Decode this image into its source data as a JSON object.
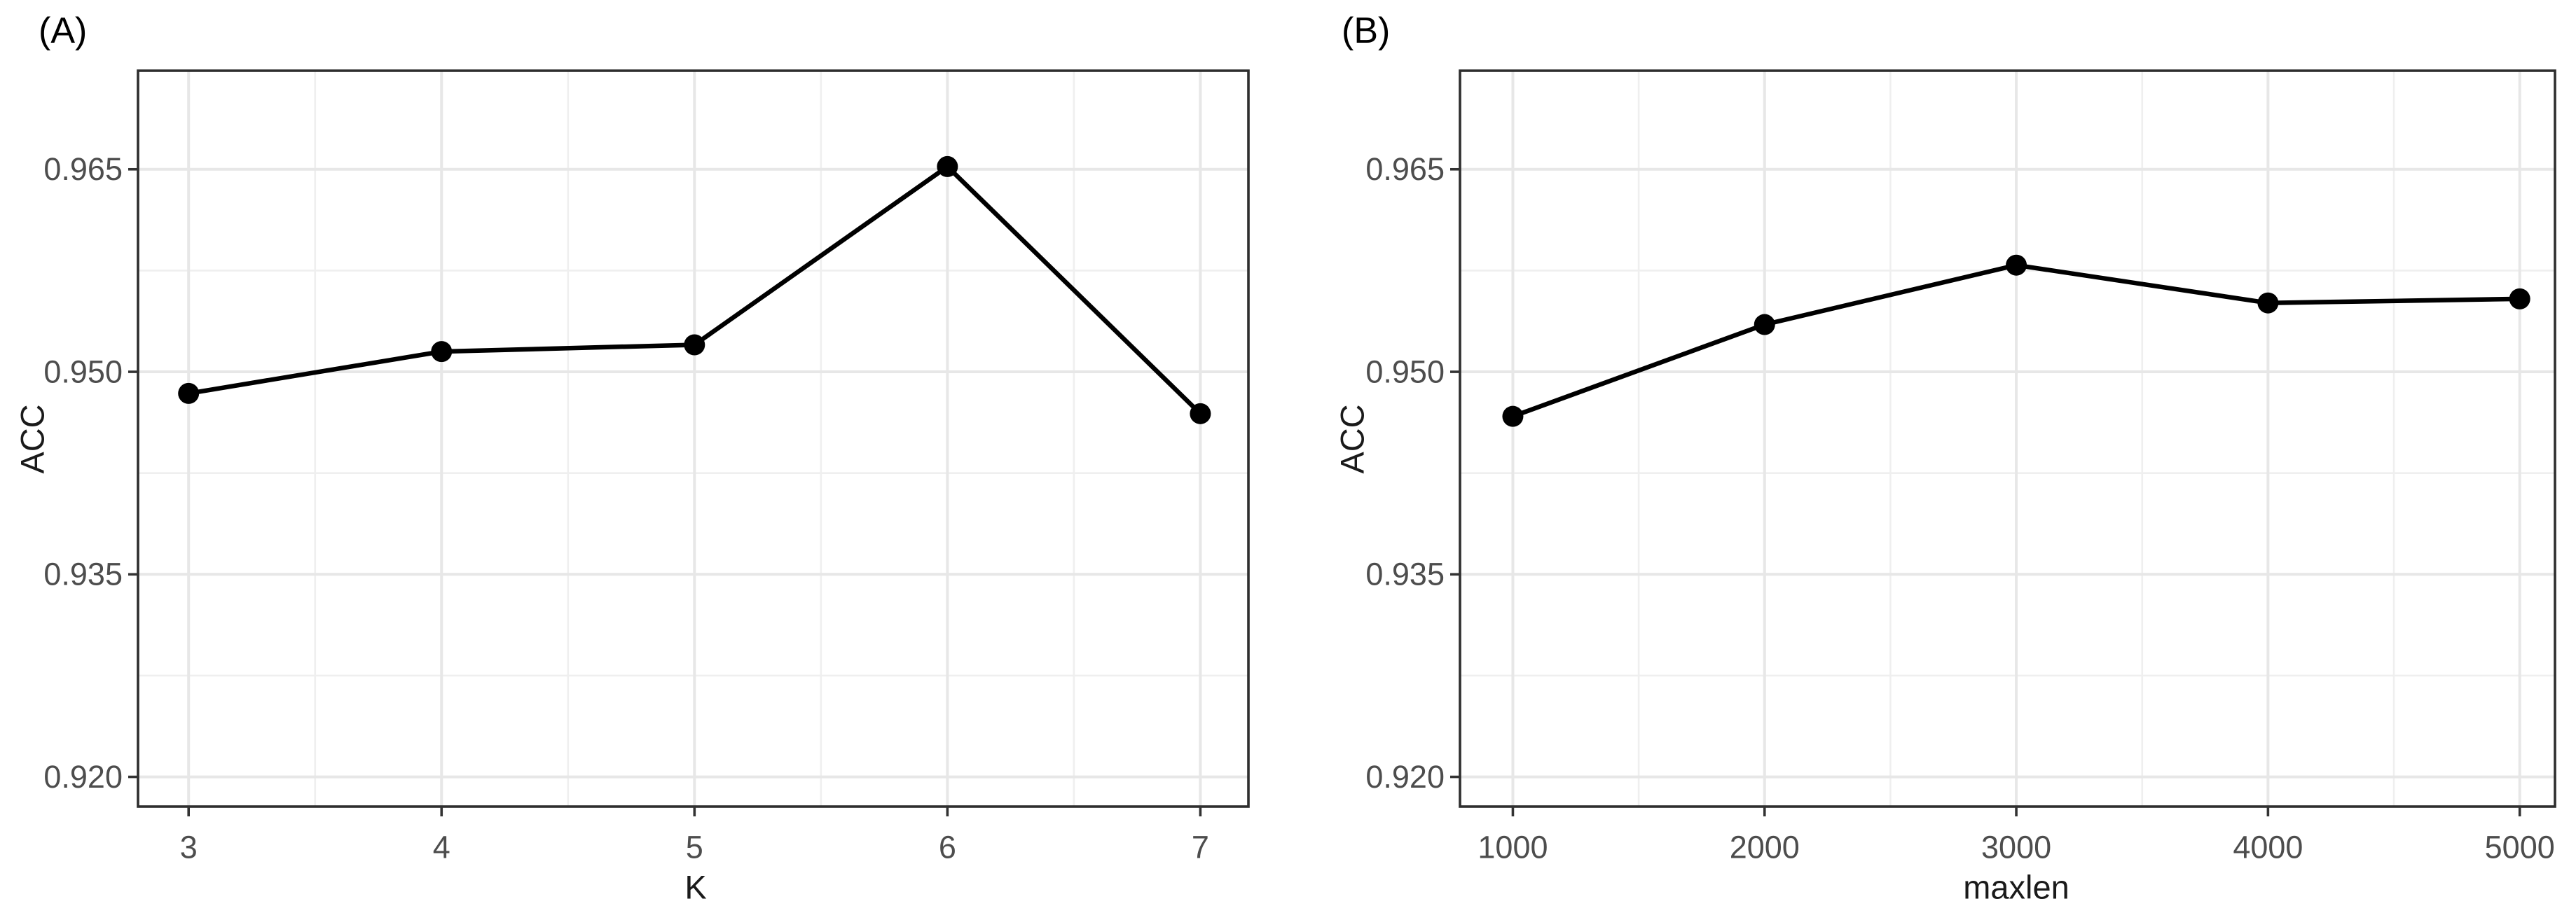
{
  "figure": {
    "background": "#ffffff"
  },
  "style": {
    "border_color": "#2e2e2e",
    "grid_major_color": "#e7e7e7",
    "grid_minor_color": "#efefef",
    "tick_color": "#333333",
    "tick_label_color": "#4d4d4d",
    "axis_title_color": "#1a1a1a",
    "panel_title_color": "#000000",
    "line_color": "#000000",
    "point_color": "#000000"
  },
  "chart_data": [
    {
      "type": "line",
      "panel_label": "(A)",
      "xlabel": "K",
      "ylabel": "ACC",
      "x": [
        3,
        4,
        5,
        6,
        7
      ],
      "y": [
        0.9484,
        0.9515,
        0.952,
        0.9652,
        0.9469
      ],
      "x_tick_labels": [
        "3",
        "4",
        "5",
        "6",
        "7"
      ],
      "y_ticks": [
        0.965,
        0.95,
        0.935,
        0.92
      ],
      "y_tick_labels": [
        "0.965",
        "0.950",
        "0.935",
        "0.920"
      ],
      "x_minor_ticks": [
        3.5,
        4.5,
        5.5,
        6.5
      ],
      "y_minor_ticks": [
        0.9575,
        0.9425,
        0.9275
      ],
      "xlim": [
        2.8,
        7.19
      ],
      "ylim": [
        0.9178,
        0.9723
      ],
      "grid": "major+minor",
      "legend": "none",
      "marker": "filled-circle"
    },
    {
      "type": "line",
      "panel_label": "(B)",
      "xlabel": "maxlen",
      "ylabel": "ACC",
      "x": [
        1000,
        2000,
        3000,
        4000,
        5000
      ],
      "y": [
        0.9467,
        0.9535,
        0.9579,
        0.9551,
        0.9554
      ],
      "x_tick_labels": [
        "1000",
        "2000",
        "3000",
        "4000",
        "5000"
      ],
      "y_ticks": [
        0.965,
        0.95,
        0.935,
        0.92
      ],
      "y_tick_labels": [
        "0.965",
        "0.950",
        "0.935",
        "0.920"
      ],
      "x_minor_ticks": [
        1500,
        2500,
        3500,
        4500
      ],
      "y_minor_ticks": [
        0.9575,
        0.9425,
        0.9275
      ],
      "xlim": [
        790,
        5140
      ],
      "ylim": [
        0.9178,
        0.9723
      ],
      "grid": "major+minor",
      "legend": "none",
      "marker": "filled-circle"
    }
  ]
}
